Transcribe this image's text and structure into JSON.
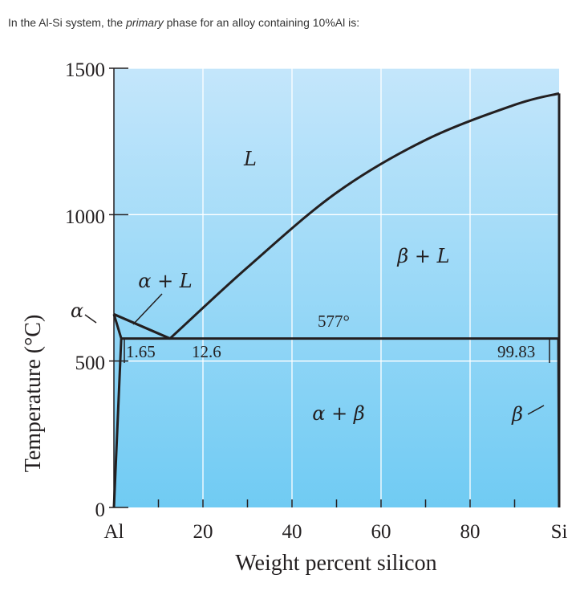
{
  "question": {
    "before": "In the Al-Si system, the ",
    "emphasis": "primary",
    "after": " phase for an alloy containing 10%Al is:"
  },
  "chart_data": {
    "type": "line",
    "title": "",
    "xlabel": "Weight percent silicon",
    "ylabel": "Temperature (°C)",
    "xlim": [
      0,
      100
    ],
    "ylim": [
      0,
      1500
    ],
    "x_ticks": [
      0,
      10,
      20,
      30,
      40,
      50,
      60,
      70,
      80,
      90,
      100
    ],
    "x_tick_labels": [
      {
        "x": 0,
        "label": "Al"
      },
      {
        "x": 20,
        "label": "20"
      },
      {
        "x": 40,
        "label": "40"
      },
      {
        "x": 60,
        "label": "60"
      },
      {
        "x": 80,
        "label": "80"
      },
      {
        "x": 100,
        "label": "Si"
      }
    ],
    "y_tick_labels": [
      {
        "y": 0,
        "label": "0"
      },
      {
        "y": 500,
        "label": "500"
      },
      {
        "y": 1000,
        "label": "1000"
      },
      {
        "y": 1500,
        "label": "1500"
      }
    ],
    "grid": true,
    "background": {
      "top": "#c4e6fb",
      "bottom": "#70cbf3"
    },
    "line_color": "#231f20",
    "series": [
      {
        "points": [
          [
            0,
            660
          ],
          [
            12.6,
            577
          ],
          [
            30,
            820
          ],
          [
            50,
            1075
          ],
          [
            70,
            1255
          ],
          [
            90,
            1375
          ],
          [
            100,
            1414
          ]
        ]
      },
      {
        "points": [
          [
            0,
            660
          ],
          [
            1.65,
            577
          ],
          [
            0,
            0
          ]
        ]
      },
      {
        "points": [
          [
            1.65,
            577
          ],
          [
            99.83,
            577
          ],
          [
            100,
            0
          ]
        ]
      },
      {
        "points": [
          [
            100,
            1414
          ],
          [
            100,
            0
          ]
        ]
      },
      {
        "points": [
          [
            0,
            660
          ],
          [
            12.6,
            577
          ]
        ]
      }
    ],
    "labels": {
      "L": "L",
      "beta_L": "β + L",
      "alpha_L": "α + L",
      "alpha": "α",
      "temp_577": "577°",
      "comp_165": "1.65",
      "comp_126": "12.6",
      "comp_9983": "99.83",
      "alpha_beta": "α + β",
      "beta": "β"
    }
  }
}
